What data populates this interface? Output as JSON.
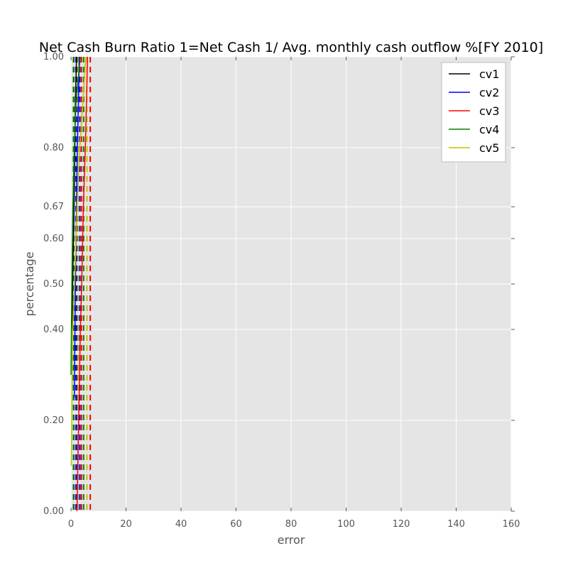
{
  "chart_data": {
    "type": "line",
    "title": "Net Cash Burn Ratio 1=Net Cash 1/ Avg. monthly cash outflow %[FY 2010]",
    "xlabel": "error",
    "ylabel": "percentage",
    "xlim": [
      0,
      160
    ],
    "ylim": [
      0,
      1
    ],
    "x_ticks": [
      "0",
      "20",
      "40",
      "60",
      "80",
      "100",
      "120",
      "140",
      "160"
    ],
    "x_tick_values": [
      0,
      20,
      40,
      60,
      80,
      100,
      120,
      140,
      160
    ],
    "y_ticks": [
      "0.00",
      "0.20",
      "0.40",
      "0.50",
      "0.60",
      "0.67",
      "0.80",
      "1.00"
    ],
    "y_tick_values": [
      0,
      0.2,
      0.4,
      0.5,
      0.6,
      0.67,
      0.8,
      1.0
    ],
    "grid": true,
    "legend_position": "top-right",
    "series": [
      {
        "name": "cv1",
        "color": "#000000",
        "x": [
          0.4,
          0.6,
          0.9,
          1.1,
          1.4,
          1.6,
          2.0
        ],
        "y": [
          0.4,
          0.5,
          0.6,
          0.67,
          0.8,
          0.9,
          1.0
        ],
        "dashed_x": [
          1.0,
          2.4
        ]
      },
      {
        "name": "cv2",
        "color": "#0000ff",
        "x": [
          1.2,
          1.6,
          2.0,
          2.3,
          2.7,
          3.0
        ],
        "y": [
          0.25,
          0.5,
          0.67,
          0.8,
          0.9,
          1.0
        ],
        "dashed_x": [
          1.8,
          3.2
        ]
      },
      {
        "name": "cv3",
        "color": "#ff0000",
        "x": [
          2.2,
          2.8,
          3.4,
          3.9,
          4.5,
          5.2,
          6.0
        ],
        "y": [
          0.0,
          0.2,
          0.4,
          0.5,
          0.67,
          0.8,
          1.0
        ],
        "dashed_x": [
          3.8,
          7.0
        ]
      },
      {
        "name": "cv4",
        "color": "#008000",
        "x": [
          0.0,
          0.3,
          0.7,
          1.2,
          1.8,
          2.6,
          3.4
        ],
        "y": [
          0.3,
          0.5,
          0.67,
          0.8,
          0.9,
          0.95,
          1.0
        ],
        "dashed_x": [
          0.9,
          4.6
        ]
      },
      {
        "name": "cv5",
        "color": "#c0bf00",
        "x": [
          0.1,
          0.6,
          1.3,
          2.2,
          3.2,
          4.3,
          5.4
        ],
        "y": [
          0.1,
          0.4,
          0.5,
          0.67,
          0.8,
          0.9,
          1.0
        ],
        "dashed_x": [
          2.6,
          5.8
        ]
      }
    ]
  }
}
